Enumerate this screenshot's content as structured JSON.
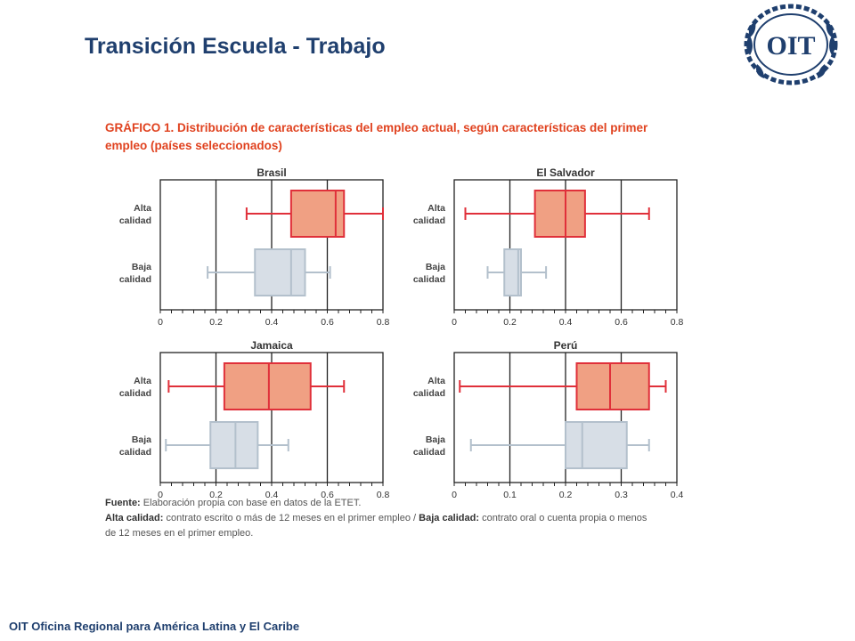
{
  "slide": {
    "title": "Transición Escuela - Trabajo",
    "footer": "OIT Oficina Regional para América Latina y El Caribe",
    "logo_text": "OIT"
  },
  "colors": {
    "title": "#1f3f6e",
    "heading": "#e0421f",
    "alta_fill": "#f0a083",
    "alta_stroke": "#e0303a",
    "baja_fill": "#d7dee6",
    "baja_stroke": "#b3c0cc",
    "grid": "#222222"
  },
  "figure": {
    "heading_line1": "GRÁFICO 1. Distribución de características del empleo actual, según características del primer",
    "heading_line2": "empleo (países seleccionados)",
    "notes": {
      "fuente_label": "Fuente:",
      "fuente_text": " Elaboración propia con base en datos de la ETET.",
      "alta_label": "Alta calidad:",
      "alta_text": " contrato escrito o más de 12 meses en el primer empleo / ",
      "baja_label": "Baja calidad:",
      "baja_text": " contrato oral o cuenta propia o menos",
      "line3": "de 12 meses en el primer empleo."
    }
  },
  "chart_data": [
    {
      "type": "boxplot",
      "title": "Brasil",
      "categories": [
        "Alta calidad",
        "Baja calidad"
      ],
      "category_lines": [
        [
          "Alta",
          "calidad"
        ],
        [
          "Baja",
          "calidad"
        ]
      ],
      "xlim": [
        0,
        0.8
      ],
      "xticks": [
        "0",
        "0.2",
        "0.4",
        "0.6",
        "0.8"
      ],
      "grid": true,
      "boxes": [
        {
          "name": "Alta calidad",
          "min": 0.31,
          "q1": 0.47,
          "median": 0.63,
          "q3": 0.66,
          "max": 0.8
        },
        {
          "name": "Baja calidad",
          "min": 0.17,
          "q1": 0.34,
          "median": 0.47,
          "q3": 0.52,
          "max": 0.61
        }
      ]
    },
    {
      "type": "boxplot",
      "title": "El Salvador",
      "categories": [
        "Alta calidad",
        "Baja calidad"
      ],
      "category_lines": [
        [
          "Alta",
          "calidad"
        ],
        [
          "Baja",
          "calidad"
        ]
      ],
      "xlim": [
        0,
        0.8
      ],
      "xticks": [
        "0",
        "0.2",
        "0.4",
        "0.6",
        "0.8"
      ],
      "grid": true,
      "boxes": [
        {
          "name": "Alta calidad",
          "min": 0.04,
          "q1": 0.29,
          "median": 0.4,
          "q3": 0.47,
          "max": 0.7
        },
        {
          "name": "Baja calidad",
          "min": 0.12,
          "q1": 0.18,
          "median": 0.23,
          "q3": 0.24,
          "max": 0.33
        }
      ]
    },
    {
      "type": "boxplot",
      "title": "Jamaica",
      "categories": [
        "Alta calidad",
        "Baja calidad"
      ],
      "category_lines": [
        [
          "Alta",
          "calidad"
        ],
        [
          "Baja",
          "calidad"
        ]
      ],
      "xlim": [
        0,
        0.8
      ],
      "xticks": [
        "0",
        "0.2",
        "0.4",
        "0.6",
        "0.8"
      ],
      "grid": true,
      "boxes": [
        {
          "name": "Alta calidad",
          "min": 0.03,
          "q1": 0.23,
          "median": 0.39,
          "q3": 0.54,
          "max": 0.66
        },
        {
          "name": "Baja calidad",
          "min": 0.02,
          "q1": 0.18,
          "median": 0.27,
          "q3": 0.35,
          "max": 0.46
        }
      ]
    },
    {
      "type": "boxplot",
      "title": "Perú",
      "categories": [
        "Alta calidad",
        "Baja calidad"
      ],
      "category_lines": [
        [
          "Alta",
          "calidad"
        ],
        [
          "Baja",
          "calidad"
        ]
      ],
      "xlim": [
        0,
        0.4
      ],
      "xticks": [
        "0",
        "0.1",
        "0.2",
        "0.3",
        "0.4"
      ],
      "grid": true,
      "boxes": [
        {
          "name": "Alta calidad",
          "min": 0.01,
          "q1": 0.22,
          "median": 0.28,
          "q3": 0.35,
          "max": 0.38
        },
        {
          "name": "Baja calidad",
          "min": 0.03,
          "q1": 0.2,
          "median": 0.23,
          "q3": 0.31,
          "max": 0.35
        }
      ]
    }
  ]
}
